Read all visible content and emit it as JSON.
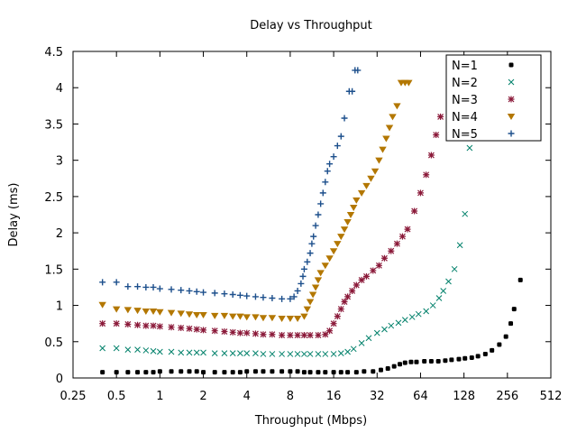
{
  "chart_data": {
    "type": "scatter",
    "title": "Delay vs Throughput",
    "xlabel": "Throughput (Mbps)",
    "ylabel": "Delay (ms)",
    "x_scale": "log2",
    "xlim": [
      0.25,
      512
    ],
    "ylim": [
      0,
      4.5
    ],
    "x_ticks": [
      {
        "value": 0.25,
        "label": "0.25"
      },
      {
        "value": 0.5,
        "label": "0.5"
      },
      {
        "value": 1,
        "label": "1"
      },
      {
        "value": 2,
        "label": "2"
      },
      {
        "value": 4,
        "label": "4"
      },
      {
        "value": 8,
        "label": "8"
      },
      {
        "value": 16,
        "label": "16"
      },
      {
        "value": 32,
        "label": "32"
      },
      {
        "value": 64,
        "label": "64"
      },
      {
        "value": 128,
        "label": "128"
      },
      {
        "value": 256,
        "label": "256"
      },
      {
        "value": 512,
        "label": "512"
      }
    ],
    "y_ticks": [
      {
        "value": 0,
        "label": "0"
      },
      {
        "value": 0.5,
        "label": "0.5"
      },
      {
        "value": 1,
        "label": "1"
      },
      {
        "value": 1.5,
        "label": "1.5"
      },
      {
        "value": 2,
        "label": "2"
      },
      {
        "value": 2.5,
        "label": "2.5"
      },
      {
        "value": 3,
        "label": "3"
      },
      {
        "value": 3.5,
        "label": "3.5"
      },
      {
        "value": 4,
        "label": "4"
      },
      {
        "value": 4.5,
        "label": "4.5"
      }
    ],
    "grid": false,
    "legend_position": "top-right",
    "series": [
      {
        "name": "N=1",
        "color": "#000000",
        "marker": "circle",
        "points": [
          [
            0.4,
            0.08
          ],
          [
            0.5,
            0.08
          ],
          [
            0.6,
            0.08
          ],
          [
            0.7,
            0.08
          ],
          [
            0.8,
            0.08
          ],
          [
            0.9,
            0.08
          ],
          [
            1.0,
            0.09
          ],
          [
            1.2,
            0.09
          ],
          [
            1.4,
            0.09
          ],
          [
            1.6,
            0.09
          ],
          [
            1.8,
            0.09
          ],
          [
            2.0,
            0.08
          ],
          [
            2.4,
            0.08
          ],
          [
            2.8,
            0.08
          ],
          [
            3.2,
            0.08
          ],
          [
            3.6,
            0.08
          ],
          [
            4.0,
            0.09
          ],
          [
            4.6,
            0.09
          ],
          [
            5.2,
            0.09
          ],
          [
            6.0,
            0.09
          ],
          [
            7.0,
            0.09
          ],
          [
            8.0,
            0.09
          ],
          [
            9.0,
            0.09
          ],
          [
            10.0,
            0.08
          ],
          [
            11.0,
            0.08
          ],
          [
            12.5,
            0.08
          ],
          [
            14.0,
            0.08
          ],
          [
            16.0,
            0.08
          ],
          [
            18.0,
            0.08
          ],
          [
            20.0,
            0.08
          ],
          [
            23.0,
            0.08
          ],
          [
            26.0,
            0.09
          ],
          [
            30.0,
            0.09
          ],
          [
            34.0,
            0.11
          ],
          [
            38.0,
            0.13
          ],
          [
            42.0,
            0.16
          ],
          [
            46.0,
            0.19
          ],
          [
            50.0,
            0.21
          ],
          [
            55.0,
            0.22
          ],
          [
            60.0,
            0.22
          ],
          [
            68.0,
            0.23
          ],
          [
            76.0,
            0.23
          ],
          [
            85.0,
            0.23
          ],
          [
            95.0,
            0.24
          ],
          [
            105.0,
            0.25
          ],
          [
            118.0,
            0.26
          ],
          [
            130.0,
            0.27
          ],
          [
            145.0,
            0.28
          ],
          [
            160.0,
            0.3
          ],
          [
            180.0,
            0.33
          ],
          [
            200.0,
            0.38
          ],
          [
            225.0,
            0.46
          ],
          [
            250.0,
            0.57
          ],
          [
            270.0,
            0.75
          ],
          [
            285.0,
            0.95
          ],
          [
            315.0,
            1.35
          ]
        ]
      },
      {
        "name": "N=2",
        "color": "#00806a",
        "marker": "x",
        "points": [
          [
            0.4,
            0.41
          ],
          [
            0.5,
            0.41
          ],
          [
            0.6,
            0.39
          ],
          [
            0.7,
            0.39
          ],
          [
            0.8,
            0.38
          ],
          [
            0.9,
            0.37
          ],
          [
            1.0,
            0.36
          ],
          [
            1.2,
            0.36
          ],
          [
            1.4,
            0.35
          ],
          [
            1.6,
            0.35
          ],
          [
            1.8,
            0.35
          ],
          [
            2.0,
            0.35
          ],
          [
            2.4,
            0.34
          ],
          [
            2.8,
            0.34
          ],
          [
            3.2,
            0.34
          ],
          [
            3.6,
            0.34
          ],
          [
            4.0,
            0.34
          ],
          [
            4.6,
            0.34
          ],
          [
            5.2,
            0.33
          ],
          [
            6.0,
            0.33
          ],
          [
            7.0,
            0.33
          ],
          [
            8.0,
            0.33
          ],
          [
            9.0,
            0.33
          ],
          [
            10.0,
            0.33
          ],
          [
            11.0,
            0.33
          ],
          [
            12.5,
            0.33
          ],
          [
            14.0,
            0.33
          ],
          [
            16.0,
            0.33
          ],
          [
            18.0,
            0.34
          ],
          [
            20.0,
            0.36
          ],
          [
            22.0,
            0.4
          ],
          [
            25.0,
            0.48
          ],
          [
            28.0,
            0.55
          ],
          [
            32.0,
            0.62
          ],
          [
            36.0,
            0.67
          ],
          [
            40.0,
            0.72
          ],
          [
            45.0,
            0.76
          ],
          [
            50.0,
            0.8
          ],
          [
            56.0,
            0.84
          ],
          [
            62.0,
            0.88
          ],
          [
            70.0,
            0.92
          ],
          [
            78.0,
            1.0
          ],
          [
            86.0,
            1.1
          ],
          [
            92.0,
            1.2
          ],
          [
            100.0,
            1.33
          ],
          [
            110.0,
            1.5
          ],
          [
            120.0,
            1.83
          ],
          [
            130.0,
            2.26
          ],
          [
            140.0,
            3.17
          ]
        ]
      },
      {
        "name": "N=3",
        "color": "#8b1a3a",
        "marker": "asterisk",
        "points": [
          [
            0.4,
            0.75
          ],
          [
            0.5,
            0.75
          ],
          [
            0.6,
            0.74
          ],
          [
            0.7,
            0.73
          ],
          [
            0.8,
            0.72
          ],
          [
            0.9,
            0.72
          ],
          [
            1.0,
            0.71
          ],
          [
            1.2,
            0.7
          ],
          [
            1.4,
            0.69
          ],
          [
            1.6,
            0.68
          ],
          [
            1.8,
            0.67
          ],
          [
            2.0,
            0.66
          ],
          [
            2.4,
            0.65
          ],
          [
            2.8,
            0.64
          ],
          [
            3.2,
            0.63
          ],
          [
            3.6,
            0.62
          ],
          [
            4.0,
            0.62
          ],
          [
            4.6,
            0.61
          ],
          [
            5.2,
            0.6
          ],
          [
            6.0,
            0.6
          ],
          [
            7.0,
            0.59
          ],
          [
            8.0,
            0.59
          ],
          [
            9.0,
            0.59
          ],
          [
            10.0,
            0.59
          ],
          [
            11.0,
            0.59
          ],
          [
            12.5,
            0.59
          ],
          [
            14.0,
            0.6
          ],
          [
            15.0,
            0.65
          ],
          [
            16.0,
            0.75
          ],
          [
            17.0,
            0.85
          ],
          [
            18.0,
            0.95
          ],
          [
            19.0,
            1.05
          ],
          [
            20.0,
            1.12
          ],
          [
            21.5,
            1.2
          ],
          [
            23.0,
            1.28
          ],
          [
            25.0,
            1.35
          ],
          [
            27.0,
            1.4
          ],
          [
            30.0,
            1.48
          ],
          [
            33.0,
            1.55
          ],
          [
            36.0,
            1.65
          ],
          [
            40.0,
            1.75
          ],
          [
            44.0,
            1.85
          ],
          [
            48.0,
            1.95
          ],
          [
            52.0,
            2.05
          ],
          [
            58.0,
            2.3
          ],
          [
            64.0,
            2.55
          ],
          [
            70.0,
            2.8
          ],
          [
            76.0,
            3.07
          ],
          [
            82.0,
            3.35
          ],
          [
            88.0,
            3.6
          ]
        ]
      },
      {
        "name": "N=4",
        "color": "#b37700",
        "marker": "triangle-down",
        "points": [
          [
            0.4,
            1.01
          ],
          [
            0.5,
            0.95
          ],
          [
            0.6,
            0.94
          ],
          [
            0.7,
            0.93
          ],
          [
            0.8,
            0.92
          ],
          [
            0.9,
            0.92
          ],
          [
            1.0,
            0.91
          ],
          [
            1.2,
            0.9
          ],
          [
            1.4,
            0.89
          ],
          [
            1.6,
            0.88
          ],
          [
            1.8,
            0.87
          ],
          [
            2.0,
            0.87
          ],
          [
            2.4,
            0.86
          ],
          [
            2.8,
            0.86
          ],
          [
            3.2,
            0.85
          ],
          [
            3.6,
            0.85
          ],
          [
            4.0,
            0.84
          ],
          [
            4.6,
            0.84
          ],
          [
            5.2,
            0.83
          ],
          [
            6.0,
            0.83
          ],
          [
            7.0,
            0.82
          ],
          [
            8.0,
            0.82
          ],
          [
            9.0,
            0.82
          ],
          [
            10.0,
            0.85
          ],
          [
            10.5,
            0.95
          ],
          [
            11.0,
            1.05
          ],
          [
            11.5,
            1.15
          ],
          [
            12.0,
            1.25
          ],
          [
            12.5,
            1.35
          ],
          [
            13.0,
            1.45
          ],
          [
            14.0,
            1.55
          ],
          [
            15.0,
            1.65
          ],
          [
            16.0,
            1.75
          ],
          [
            17.0,
            1.85
          ],
          [
            18.0,
            1.95
          ],
          [
            19.0,
            2.05
          ],
          [
            20.0,
            2.15
          ],
          [
            21.0,
            2.25
          ],
          [
            22.0,
            2.35
          ],
          [
            23.0,
            2.45
          ],
          [
            25.0,
            2.55
          ],
          [
            27.0,
            2.65
          ],
          [
            29.0,
            2.75
          ],
          [
            31.0,
            2.85
          ],
          [
            33.0,
            3.0
          ],
          [
            35.0,
            3.15
          ],
          [
            37.0,
            3.3
          ],
          [
            39.0,
            3.45
          ],
          [
            41.0,
            3.6
          ],
          [
            44.0,
            3.75
          ],
          [
            47.0,
            4.07
          ],
          [
            50.0,
            4.07
          ],
          [
            53.0,
            4.07
          ]
        ]
      },
      {
        "name": "N=5",
        "color": "#1c4f8c",
        "marker": "plus",
        "points": [
          [
            0.4,
            1.32
          ],
          [
            0.5,
            1.32
          ],
          [
            0.6,
            1.26
          ],
          [
            0.7,
            1.26
          ],
          [
            0.8,
            1.25
          ],
          [
            0.9,
            1.25
          ],
          [
            1.0,
            1.23
          ],
          [
            1.2,
            1.22
          ],
          [
            1.4,
            1.21
          ],
          [
            1.6,
            1.2
          ],
          [
            1.8,
            1.19
          ],
          [
            2.0,
            1.18
          ],
          [
            2.4,
            1.17
          ],
          [
            2.8,
            1.16
          ],
          [
            3.2,
            1.15
          ],
          [
            3.6,
            1.14
          ],
          [
            4.0,
            1.13
          ],
          [
            4.6,
            1.12
          ],
          [
            5.2,
            1.11
          ],
          [
            6.0,
            1.1
          ],
          [
            7.0,
            1.09
          ],
          [
            8.0,
            1.09
          ],
          [
            8.5,
            1.12
          ],
          [
            9.0,
            1.2
          ],
          [
            9.5,
            1.3
          ],
          [
            9.8,
            1.4
          ],
          [
            10.0,
            1.5
          ],
          [
            10.5,
            1.6
          ],
          [
            11.0,
            1.72
          ],
          [
            11.3,
            1.85
          ],
          [
            11.6,
            1.95
          ],
          [
            12.0,
            2.1
          ],
          [
            12.5,
            2.25
          ],
          [
            13.0,
            2.4
          ],
          [
            13.5,
            2.55
          ],
          [
            14.0,
            2.7
          ],
          [
            14.5,
            2.85
          ],
          [
            15.0,
            2.95
          ],
          [
            16.0,
            3.05
          ],
          [
            17.0,
            3.2
          ],
          [
            18.0,
            3.33
          ],
          [
            19.0,
            3.58
          ],
          [
            20.5,
            3.95
          ],
          [
            21.5,
            3.95
          ],
          [
            22.5,
            4.24
          ],
          [
            23.5,
            4.24
          ]
        ]
      }
    ]
  }
}
